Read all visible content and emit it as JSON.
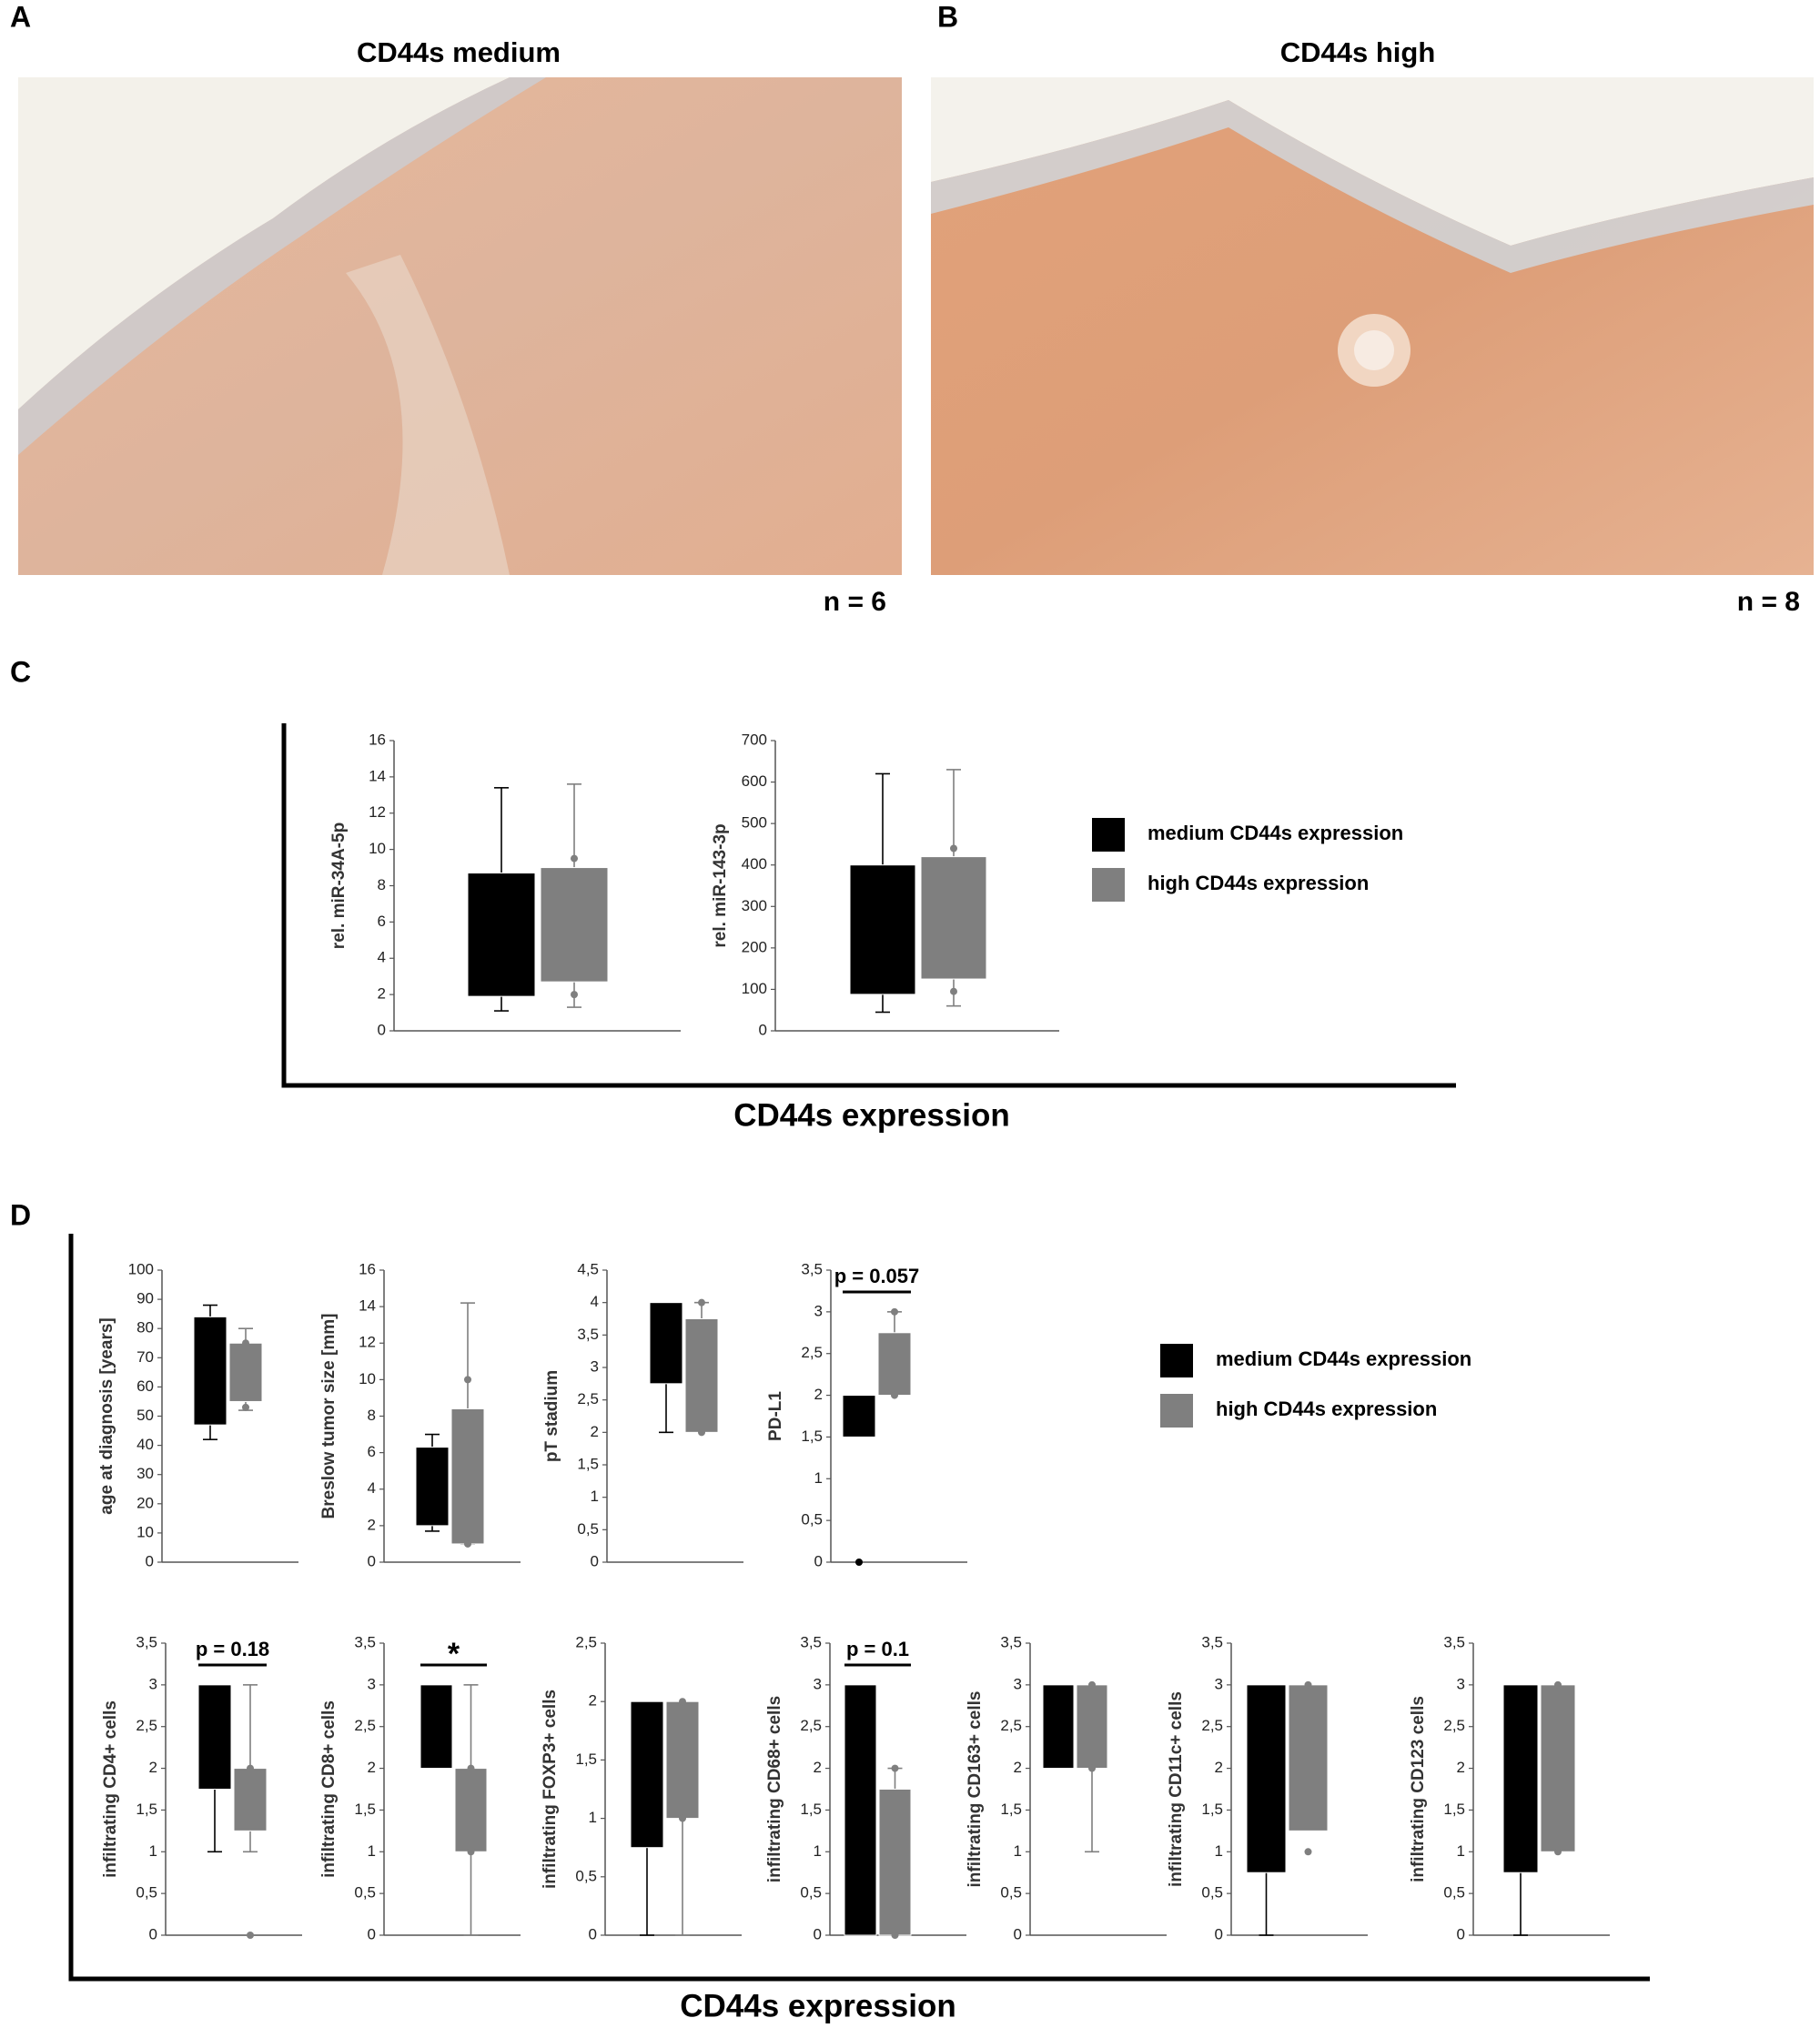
{
  "images": [
    {
      "label": "A",
      "title": "CD44s medium",
      "n": "n = 6"
    },
    {
      "label": "B",
      "title": "CD44s high",
      "n": "n = 8"
    }
  ],
  "sections": [
    {
      "label": "C",
      "xlabel": "CD44s expression"
    },
    {
      "label": "D",
      "xlabel": "CD44s expression"
    }
  ],
  "chart_data": [
    {
      "type": "box",
      "ylabel": "rel. miR-34A-5p",
      "ylim": [
        0,
        16
      ],
      "yticks": [
        0,
        2,
        4,
        6,
        8,
        10,
        12,
        14,
        16
      ],
      "series": [
        {
          "name": "medium CD44s expression",
          "color": "#000000",
          "min": 1.1,
          "q1": 1.9,
          "q3": 8.7,
          "max": 13.4
        },
        {
          "name": "high CD44s expression",
          "color": "#7f7f7f",
          "min": 1.3,
          "q1": 2.7,
          "q3": 9.0,
          "max": 13.6,
          "points": [
            9.5,
            2.0
          ]
        }
      ]
    },
    {
      "type": "box",
      "ylabel": "rel. miR-143-3p",
      "ylim": [
        0,
        700
      ],
      "yticks": [
        0,
        100,
        200,
        300,
        400,
        500,
        600,
        700
      ],
      "series": [
        {
          "name": "medium CD44s expression",
          "color": "#000000",
          "min": 45,
          "q1": 88,
          "q3": 400,
          "max": 620
        },
        {
          "name": "high CD44s expression",
          "color": "#7f7f7f",
          "min": 60,
          "q1": 125,
          "q3": 420,
          "max": 630,
          "points": [
            440,
            95
          ]
        }
      ]
    },
    {
      "type": "box",
      "ylabel": "age at diagnosis [years]",
      "ylim": [
        0,
        100
      ],
      "yticks": [
        0,
        10,
        20,
        30,
        40,
        50,
        60,
        70,
        80,
        90,
        100
      ],
      "series": [
        {
          "name": "medium CD44s expression",
          "color": "#000000",
          "min": 42,
          "q1": 47,
          "q3": 84,
          "max": 88
        },
        {
          "name": "high CD44s expression",
          "color": "#7f7f7f",
          "min": 52,
          "q1": 55,
          "q3": 75,
          "max": 80,
          "points": [
            75,
            53
          ]
        }
      ]
    },
    {
      "type": "box",
      "ylabel": "Breslow tumor size [mm]",
      "ylim": [
        0,
        16
      ],
      "yticks": [
        0,
        2,
        4,
        6,
        8,
        10,
        12,
        14,
        16
      ],
      "series": [
        {
          "name": "medium CD44s expression",
          "color": "#000000",
          "min": 1.7,
          "q1": 2.0,
          "q3": 6.3,
          "max": 7.0
        },
        {
          "name": "high CD44s expression",
          "color": "#7f7f7f",
          "min": 1.0,
          "q1": 1.0,
          "q3": 8.4,
          "max": 14.2,
          "points": [
            10,
            1
          ]
        }
      ]
    },
    {
      "type": "box",
      "ylabel": "pT stadium",
      "ylim": [
        0,
        4.5
      ],
      "yticks": [
        0,
        {
          "value": 0.5,
          "label": "0,5"
        },
        1,
        {
          "value": 1.5,
          "label": "1,5"
        },
        2,
        {
          "value": 2.5,
          "label": "2,5"
        },
        3,
        {
          "value": 3.5,
          "label": "3,5"
        },
        4,
        {
          "value": 4.5,
          "label": "4,5"
        }
      ],
      "series": [
        {
          "name": "medium CD44s expression",
          "color": "#000000",
          "min": 2.0,
          "q1": 2.75,
          "q3": 4.0
        },
        {
          "name": "high CD44s expression",
          "color": "#7f7f7f",
          "q1": 2.0,
          "q3": 3.75,
          "max": 4.0,
          "points": [
            4,
            2
          ]
        }
      ]
    },
    {
      "type": "box",
      "ylabel": "PD-L1",
      "annotation": "p = 0.057",
      "ylim": [
        0,
        3.5
      ],
      "yticks": [
        0,
        {
          "value": 0.5,
          "label": "0,5"
        },
        1,
        {
          "value": 1.5,
          "label": "1,5"
        },
        2,
        {
          "value": 2.5,
          "label": "2,5"
        },
        3,
        {
          "value": 3.5,
          "label": "3,5"
        }
      ],
      "series": [
        {
          "name": "medium CD44s expression",
          "color": "#000000",
          "q1": 1.5,
          "q3": 2.0,
          "points": [
            0
          ]
        },
        {
          "name": "high CD44s expression",
          "color": "#7f7f7f",
          "q1": 2.0,
          "q3": 2.75,
          "max": 3.0,
          "points": [
            3,
            2
          ]
        }
      ]
    },
    {
      "type": "box",
      "ylabel": "infiltrating CD4+ cells",
      "annotation": "p = 0.18",
      "ylim": [
        0,
        3.5
      ],
      "yticks": [
        0,
        {
          "value": 0.5,
          "label": "0,5"
        },
        1,
        {
          "value": 1.5,
          "label": "1,5"
        },
        2,
        {
          "value": 2.5,
          "label": "2,5"
        },
        3,
        {
          "value": 3.5,
          "label": "3,5"
        }
      ],
      "series": [
        {
          "name": "medium CD44s expression",
          "color": "#000000",
          "min": 1.0,
          "q1": 1.75,
          "q3": 3.0
        },
        {
          "name": "high CD44s expression",
          "color": "#7f7f7f",
          "min": 1.0,
          "q1": 1.25,
          "q3": 2.0,
          "max": 3.0,
          "points": [
            2,
            0
          ]
        }
      ]
    },
    {
      "type": "box",
      "ylabel": "infiltrating CD8+ cells",
      "annotation": "*",
      "ylim": [
        0,
        3.5
      ],
      "yticks": [
        0,
        {
          "value": 0.5,
          "label": "0,5"
        },
        1,
        {
          "value": 1.5,
          "label": "1,5"
        },
        2,
        {
          "value": 2.5,
          "label": "2,5"
        },
        3,
        {
          "value": 3.5,
          "label": "3,5"
        }
      ],
      "series": [
        {
          "name": "medium CD44s expression",
          "color": "#000000",
          "q1": 2.0,
          "q3": 3.0
        },
        {
          "name": "high CD44s expression",
          "color": "#7f7f7f",
          "min": 0,
          "q1": 1.0,
          "q3": 2.0,
          "max": 3.0,
          "points": [
            2,
            1
          ]
        }
      ]
    },
    {
      "type": "box",
      "ylabel": "infiltrating FOXP3+ cells",
      "ylim": [
        0,
        2.5
      ],
      "yticks": [
        0,
        {
          "value": 0.5,
          "label": "0,5"
        },
        1,
        {
          "value": 1.5,
          "label": "1,5"
        },
        2,
        {
          "value": 2.5,
          "label": "2,5"
        }
      ],
      "series": [
        {
          "name": "medium CD44s expression",
          "color": "#000000",
          "min": 0,
          "q1": 0.75,
          "q3": 2.0
        },
        {
          "name": "high CD44s expression",
          "color": "#7f7f7f",
          "min": 0,
          "q1": 1.0,
          "q3": 2.0,
          "points": [
            2,
            1
          ]
        }
      ]
    },
    {
      "type": "box",
      "ylabel": "infiltrating CD68+ cells",
      "annotation": "p = 0.1",
      "ylim": [
        0,
        3.5
      ],
      "yticks": [
        0,
        {
          "value": 0.5,
          "label": "0,5"
        },
        1,
        {
          "value": 1.5,
          "label": "1,5"
        },
        2,
        {
          "value": 2.5,
          "label": "2,5"
        },
        3,
        {
          "value": 3.5,
          "label": "3,5"
        }
      ],
      "series": [
        {
          "name": "medium CD44s expression",
          "color": "#000000",
          "q1": 0,
          "q3": 3.0
        },
        {
          "name": "high CD44s expression",
          "color": "#7f7f7f",
          "q1": 0,
          "q3": 1.75,
          "max": 2.0,
          "points": [
            2,
            0
          ]
        }
      ]
    },
    {
      "type": "box",
      "ylabel": "infiltrating CD163+ cells",
      "ylim": [
        0,
        3.5
      ],
      "yticks": [
        0,
        {
          "value": 0.5,
          "label": "0,5"
        },
        1,
        {
          "value": 1.5,
          "label": "1,5"
        },
        2,
        {
          "value": 2.5,
          "label": "2,5"
        },
        3,
        {
          "value": 3.5,
          "label": "3,5"
        }
      ],
      "series": [
        {
          "name": "medium CD44s expression",
          "color": "#000000",
          "q1": 2.0,
          "q3": 3.0
        },
        {
          "name": "high CD44s expression",
          "color": "#7f7f7f",
          "min": 1.0,
          "q1": 2.0,
          "q3": 3.0,
          "points": [
            3,
            2
          ]
        }
      ]
    },
    {
      "type": "box",
      "ylabel": "infiltrating CD11c+ cells",
      "ylim": [
        0,
        3.5
      ],
      "yticks": [
        0,
        {
          "value": 0.5,
          "label": "0,5"
        },
        1,
        {
          "value": 1.5,
          "label": "1,5"
        },
        2,
        {
          "value": 2.5,
          "label": "2,5"
        },
        3,
        {
          "value": 3.5,
          "label": "3,5"
        }
      ],
      "series": [
        {
          "name": "medium CD44s expression",
          "color": "#000000",
          "min": 0,
          "q1": 0.75,
          "q3": 3.0
        },
        {
          "name": "high CD44s expression",
          "color": "#7f7f7f",
          "q1": 1.25,
          "q3": 3.0,
          "points": [
            3,
            1
          ]
        }
      ]
    },
    {
      "type": "box",
      "ylabel": "infiltrating CD123 cells",
      "ylim": [
        0,
        3.5
      ],
      "yticks": [
        0,
        {
          "value": 0.5,
          "label": "0,5"
        },
        1,
        {
          "value": 1.5,
          "label": "1,5"
        },
        2,
        {
          "value": 2.5,
          "label": "2,5"
        },
        3,
        {
          "value": 3.5,
          "label": "3,5"
        }
      ],
      "series": [
        {
          "name": "medium CD44s expression",
          "color": "#000000",
          "min": 0,
          "q1": 0.75,
          "q3": 3.0
        },
        {
          "name": "high CD44s expression",
          "color": "#7f7f7f",
          "q1": 1.0,
          "q3": 3.0,
          "points": [
            3,
            1
          ]
        }
      ]
    }
  ]
}
